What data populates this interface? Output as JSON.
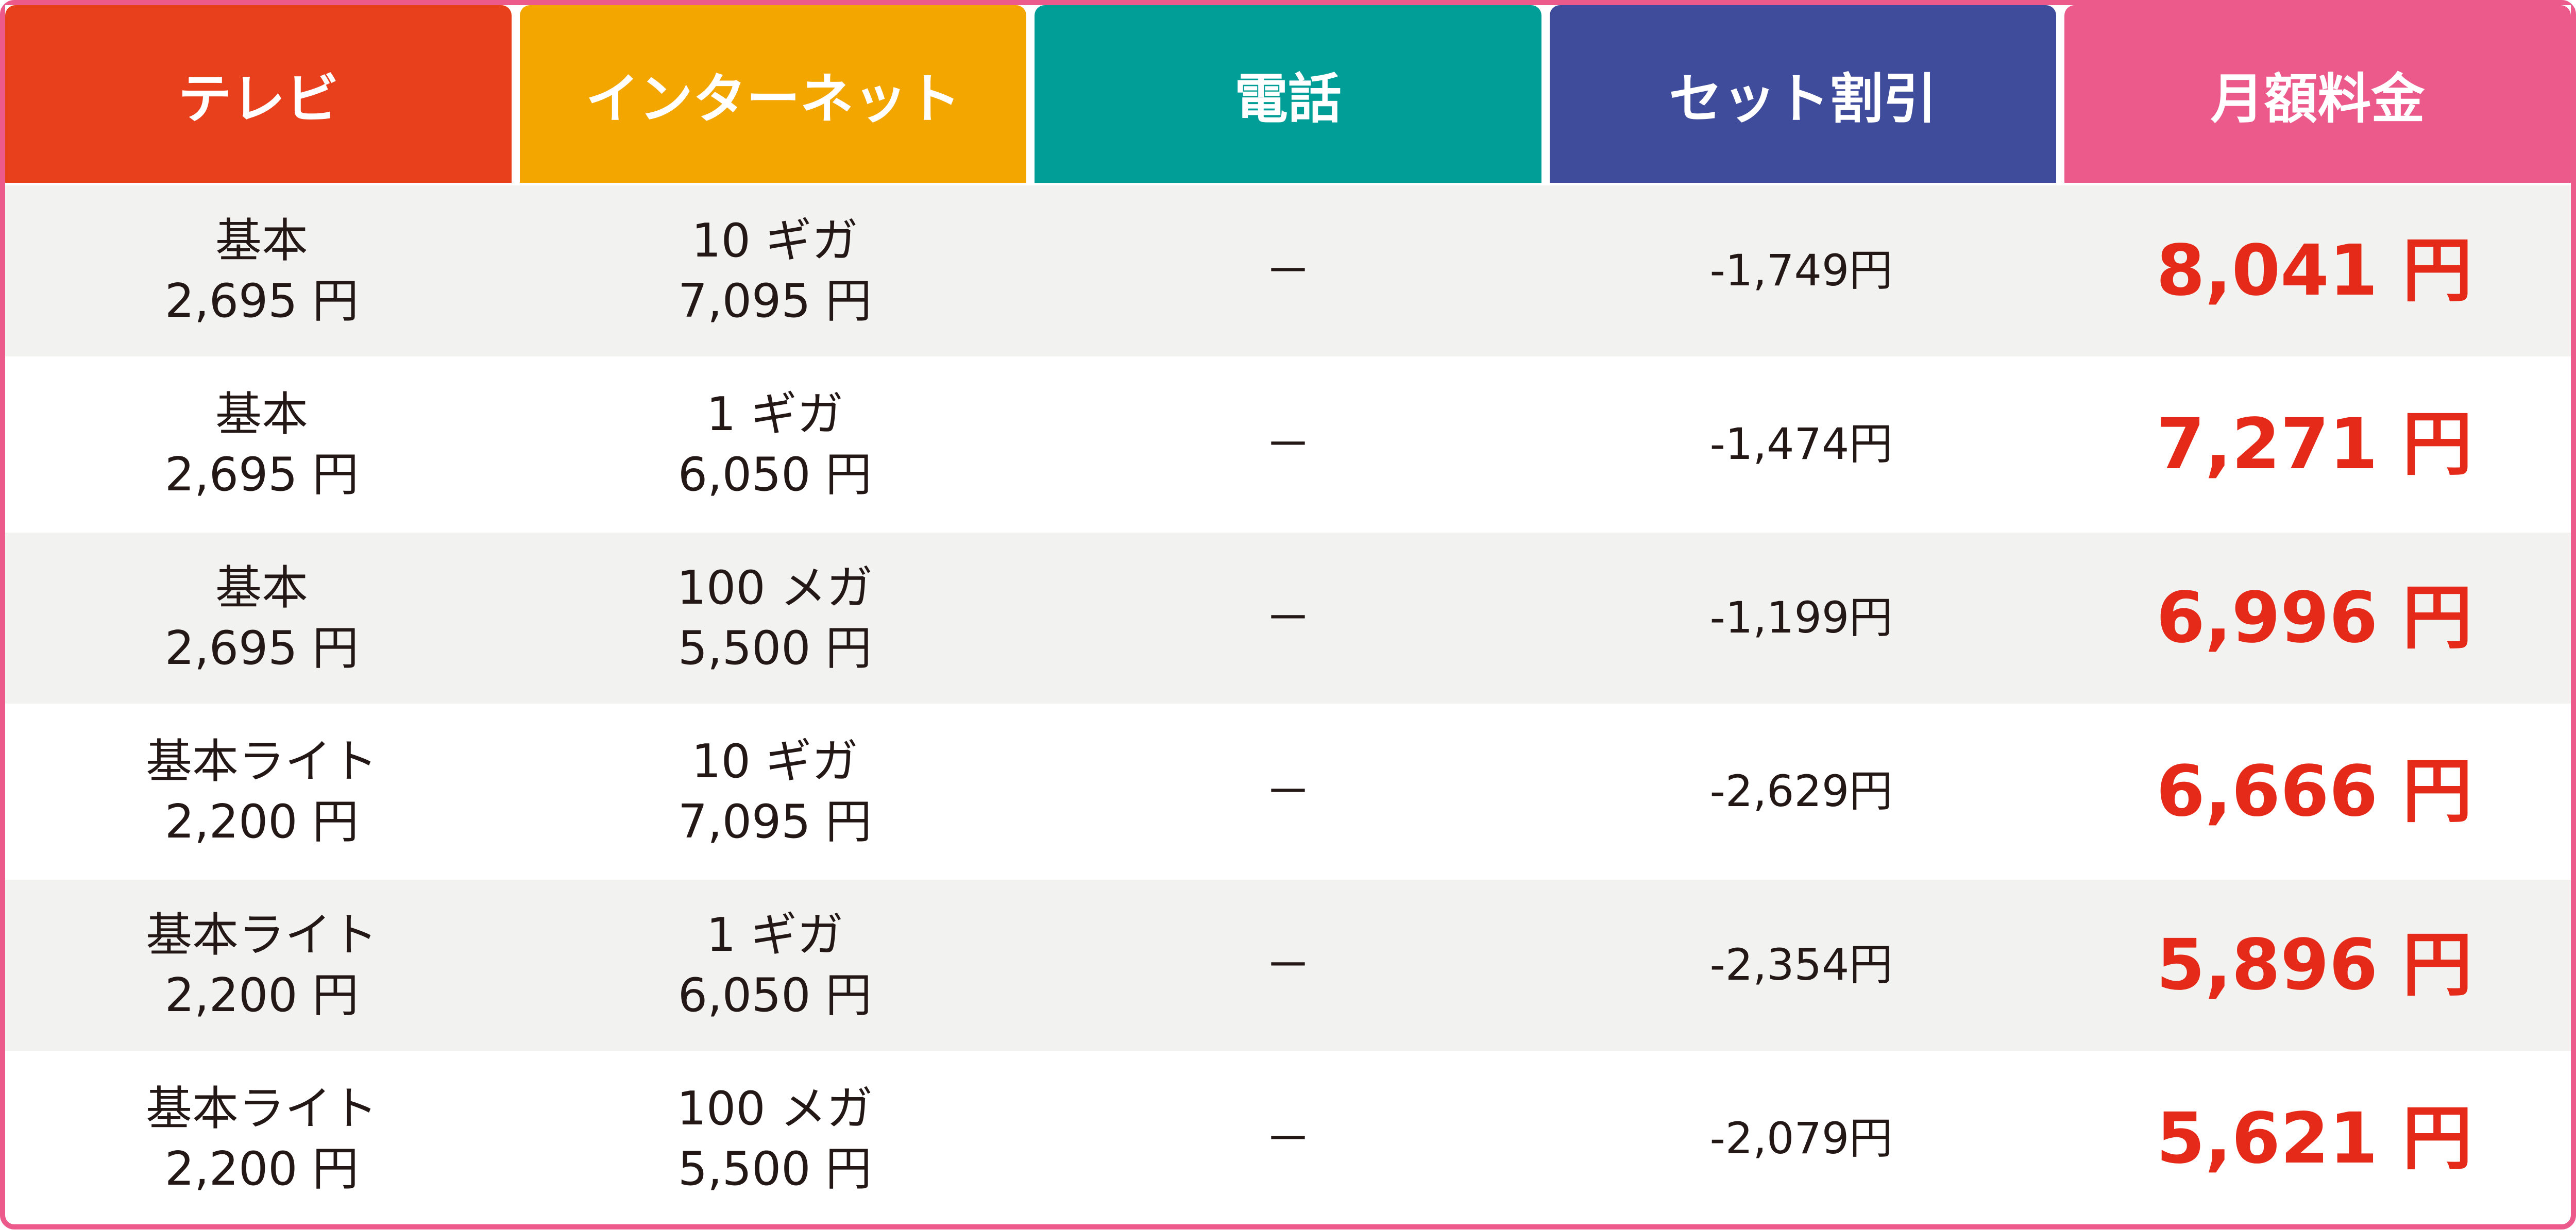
{
  "headers": [
    {
      "label": "テレビ",
      "color": "#E8401C"
    },
    {
      "label": "インターネット",
      "color": "#F3A600"
    },
    {
      "label": "電話",
      "color": "#009E96"
    },
    {
      "label": "セット割引",
      "color": "#3F4B9B"
    },
    {
      "label": "月額料金",
      "color": "#EB5A8A"
    }
  ],
  "rows": [
    {
      "tv_plan": "基本",
      "tv_price": "2,695 円",
      "net_plan": "10 ギガ",
      "net_price": "7,095 円",
      "phone": "－",
      "discount": "-1,749円",
      "total": "8,041 円"
    },
    {
      "tv_plan": "基本",
      "tv_price": "2,695 円",
      "net_plan": "1 ギガ",
      "net_price": "6,050 円",
      "phone": "－",
      "discount": "-1,474円",
      "total": "7,271 円"
    },
    {
      "tv_plan": "基本",
      "tv_price": "2,695 円",
      "net_plan": "100 メガ",
      "net_price": "5,500 円",
      "phone": "－",
      "discount": "-1,199円",
      "total": "6,996 円"
    },
    {
      "tv_plan": "基本ライト",
      "tv_price": "2,200 円",
      "net_plan": "10 ギガ",
      "net_price": "7,095 円",
      "phone": "－",
      "discount": "-2,629円",
      "total": "6,666 円"
    },
    {
      "tv_plan": "基本ライト",
      "tv_price": "2,200 円",
      "net_plan": "1 ギガ",
      "net_price": "6,050 円",
      "phone": "－",
      "discount": "-2,354円",
      "total": "5,896 円"
    },
    {
      "tv_plan": "基本ライト",
      "tv_price": "2,200 円",
      "net_plan": "100 メガ",
      "net_price": "5,500 円",
      "phone": "－",
      "discount": "-2,079円",
      "total": "5,621 円"
    }
  ]
}
